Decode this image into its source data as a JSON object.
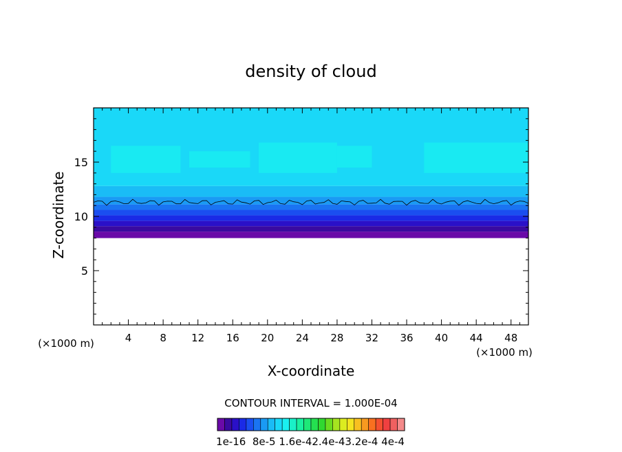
{
  "chart_data": {
    "type": "heatmap",
    "title": "density of cloud",
    "xlabel": "X-coordinate",
    "ylabel": "Z-coordinate",
    "x_unit": "(×1000 m)",
    "z_unit": "(×1000 m)",
    "xlim": [
      0,
      50
    ],
    "ylim": [
      0,
      20
    ],
    "x_ticks": [
      4,
      8,
      12,
      16,
      20,
      24,
      28,
      32,
      36,
      40,
      44,
      48
    ],
    "y_ticks": [
      5,
      10,
      15
    ],
    "contour_interval_text": "CONTOUR INTERVAL = 1.000E-04",
    "colorbar": {
      "labels": [
        "1e-16",
        "8e-5",
        "1.6e-4",
        "2.4e-4",
        "3.2e-4",
        "4e-4"
      ],
      "label_text": "1e-16  8e-5 1.6e-42.4e-43.2e-4 4e-4",
      "colors": [
        "#6a0aa8",
        "#3a0aa0",
        "#2a10c8",
        "#1a2ae6",
        "#1a4ef0",
        "#1a74f2",
        "#1a9af4",
        "#1abcf6",
        "#1ad8f8",
        "#1af0f0",
        "#1af0c8",
        "#1af0a0",
        "#1ee878",
        "#24e050",
        "#30d830",
        "#6adc20",
        "#a6e420",
        "#dcec20",
        "#f4e420",
        "#f8c020",
        "#f89a20",
        "#f87020",
        "#f45030",
        "#f04040",
        "#f06060",
        "#f48a8a"
      ]
    },
    "cloud_layer": {
      "base_z": 8.0,
      "top_z": 20,
      "contour_line_z": 11.3,
      "bands": [
        {
          "z0": 8.0,
          "z1": 8.6,
          "color": "#6a0aa8"
        },
        {
          "z0": 8.6,
          "z1": 9.1,
          "color": "#3a0aa0"
        },
        {
          "z0": 9.1,
          "z1": 9.6,
          "color": "#2a10c8"
        },
        {
          "z0": 9.6,
          "z1": 10.1,
          "color": "#1a2ae6"
        },
        {
          "z0": 10.1,
          "z1": 10.6,
          "color": "#1a4ef0"
        },
        {
          "z0": 10.6,
          "z1": 11.1,
          "color": "#1a74f2"
        },
        {
          "z0": 11.1,
          "z1": 11.8,
          "color": "#1a9af4"
        },
        {
          "z0": 11.8,
          "z1": 12.8,
          "color": "#1abcf6"
        },
        {
          "z0": 12.8,
          "z1": 20.0,
          "color": "#1ad8f8"
        }
      ],
      "patches": [
        {
          "x0": 2,
          "x1": 10,
          "z0": 14,
          "z1": 16.5,
          "color": "#1af0f0"
        },
        {
          "x0": 11,
          "x1": 18,
          "z0": 14.5,
          "z1": 16,
          "color": "#1af0f0"
        },
        {
          "x0": 19,
          "x1": 28,
          "z0": 14,
          "z1": 16.8,
          "color": "#1af0f0"
        },
        {
          "x0": 28,
          "x1": 32,
          "z0": 14.5,
          "z1": 16.5,
          "color": "#1af0f0"
        },
        {
          "x0": 38,
          "x1": 50,
          "z0": 14,
          "z1": 16.8,
          "color": "#1af0f0"
        }
      ]
    }
  }
}
